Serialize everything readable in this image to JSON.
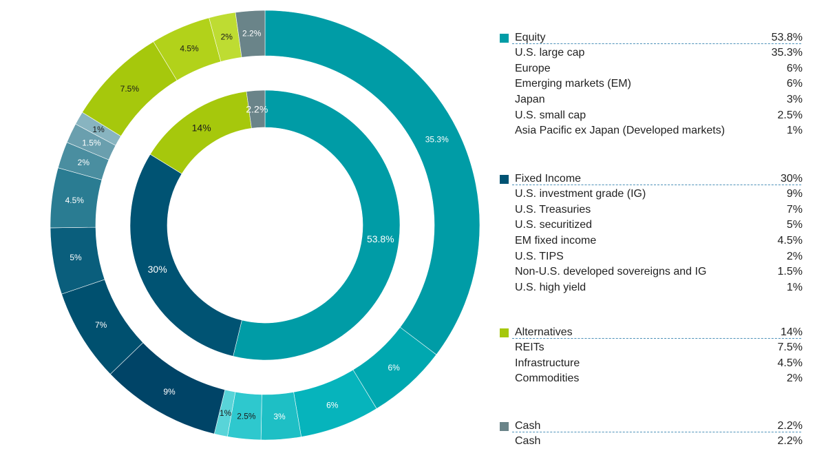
{
  "chart_data": {
    "type": "pie",
    "title": "",
    "rings": [
      {
        "name": "",
        "slices": [
          {
            "label": "Equity",
            "value": 53.8,
            "display": "53.8%",
            "color": "#009ca6"
          },
          {
            "label": "Fixed Income",
            "value": 30,
            "display": "30%",
            "color": "#005373"
          },
          {
            "label": "Alternatives",
            "value": 14,
            "display": "14%",
            "color": "#a6c80c"
          },
          {
            "label": "Cash",
            "value": 2.2,
            "display": "2.2%",
            "color": "#6a8489"
          }
        ]
      },
      {
        "name": "",
        "slices": [
          {
            "label": "U.S. large cap",
            "value": 35.3,
            "display": "35.3%",
            "color": "#009ca6"
          },
          {
            "label": "Europe",
            "value": 6,
            "display": "6%",
            "color": "#00a8b0"
          },
          {
            "label": "Emerging markets (EM)",
            "value": 6,
            "display": "6%",
            "color": "#06b4bc"
          },
          {
            "label": "Japan",
            "value": 3,
            "display": "3%",
            "color": "#1ebfc5"
          },
          {
            "label": "U.S. small cap",
            "value": 2.5,
            "display": "2.5%",
            "color": "#2ec8ce"
          },
          {
            "label": "Asia Pacific ex Japan (Developed markets)",
            "value": 1,
            "display": "1%",
            "color": "#58d4d8"
          },
          {
            "label": "U.S. investment grade (IG)",
            "value": 9,
            "display": "9%",
            "color": "#004467"
          },
          {
            "label": "U.S. Treasuries",
            "value": 7,
            "display": "7%",
            "color": "#00506f"
          },
          {
            "label": "U.S. securitized",
            "value": 5,
            "display": "5%",
            "color": "#0a5e7c"
          },
          {
            "label": "EM fixed income",
            "value": 4.5,
            "display": "4.5%",
            "color": "#2a7c92"
          },
          {
            "label": "U.S. TIPS",
            "value": 2,
            "display": "2%",
            "color": "#4a8ea0"
          },
          {
            "label": "Non-U.S. developed sovereigns and IG",
            "value": 1.5,
            "display": "1.5%",
            "color": "#6a9fae"
          },
          {
            "label": "U.S. high yield",
            "value": 1,
            "display": "1%",
            "color": "#88b4c0"
          },
          {
            "label": "REITs",
            "value": 7.5,
            "display": "7.5%",
            "color": "#a6c80c"
          },
          {
            "label": "Infrastructure",
            "value": 4.5,
            "display": "4.5%",
            "color": "#b2d21a"
          },
          {
            "label": "Commodities",
            "value": 2,
            "display": "2%",
            "color": "#bedc32"
          },
          {
            "label": "Cash",
            "value": 2.2,
            "display": "2.2%",
            "color": "#6a8489"
          }
        ]
      }
    ],
    "legend_position": "right"
  },
  "legend": {
    "groups": [
      {
        "name": "Equity",
        "value": "53.8%",
        "color": "#009ca6",
        "items": [
          {
            "label": "U.S. large cap",
            "value": "35.3%"
          },
          {
            "label": "Europe",
            "value": "6%"
          },
          {
            "label": "Emerging markets (EM)",
            "value": "6%"
          },
          {
            "label": "Japan",
            "value": "3%"
          },
          {
            "label": "U.S. small cap",
            "value": "2.5%"
          },
          {
            "label": "Asia Pacific ex Japan (Developed markets)",
            "value": "1%"
          }
        ]
      },
      {
        "name": "Fixed Income",
        "value": "30%",
        "color": "#005373",
        "items": [
          {
            "label": "U.S. investment grade (IG)",
            "value": "9%"
          },
          {
            "label": "U.S. Treasuries",
            "value": "7%"
          },
          {
            "label": "U.S. securitized",
            "value": "5%"
          },
          {
            "label": "EM fixed income",
            "value": "4.5%"
          },
          {
            "label": "U.S. TIPS",
            "value": "2%"
          },
          {
            "label": "Non-U.S. developed sovereigns and IG",
            "value": "1.5%"
          },
          {
            "label": "U.S. high yield",
            "value": "1%"
          }
        ]
      },
      {
        "name": "Alternatives",
        "value": "14%",
        "color": "#a6c80c",
        "items": [
          {
            "label": "REITs",
            "value": "7.5%"
          },
          {
            "label": "Infrastructure",
            "value": "4.5%"
          },
          {
            "label": "Commodities",
            "value": "2%"
          }
        ]
      },
      {
        "name": "Cash",
        "value": "2.2%",
        "color": "#6a8489",
        "items": [
          {
            "label": "Cash",
            "value": "2.2%"
          }
        ]
      }
    ]
  }
}
